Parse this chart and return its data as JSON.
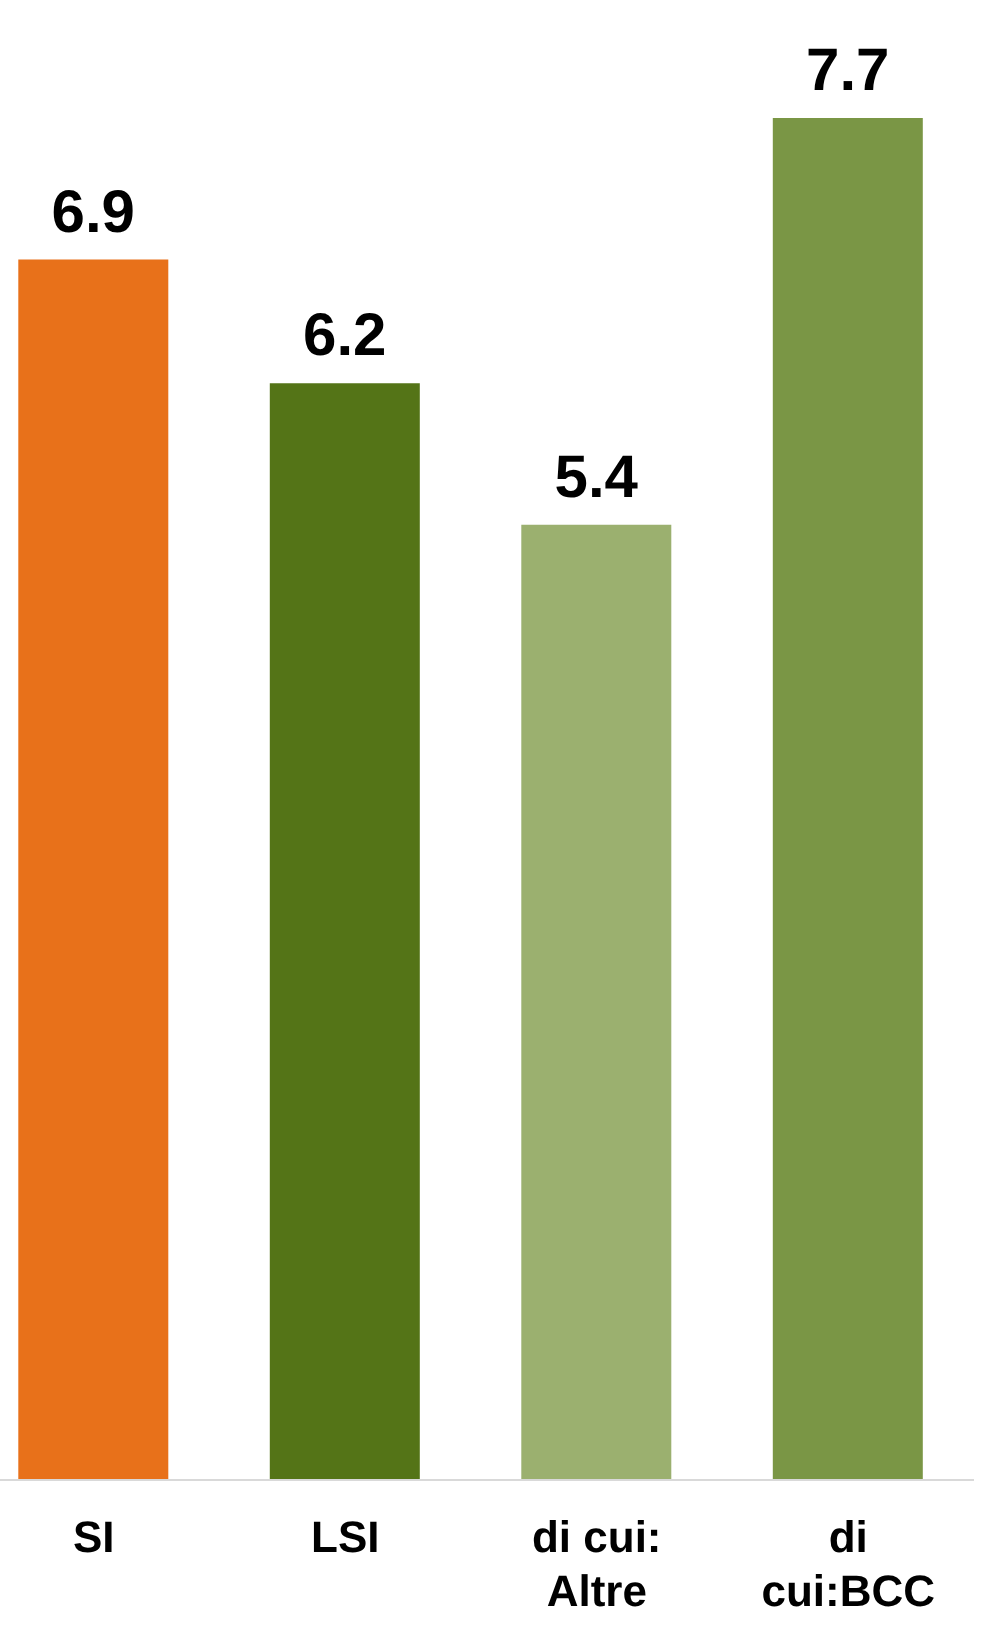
{
  "chart_data": {
    "type": "bar",
    "categories": [
      "SI",
      "LSI",
      "di cui: Altre",
      "di cui:BCC"
    ],
    "values": [
      6.9,
      6.2,
      5.4,
      7.7
    ],
    "colors": [
      "#e8711a",
      "#547417",
      "#9bb06f",
      "#7a9645"
    ],
    "data_labels": true
  }
}
